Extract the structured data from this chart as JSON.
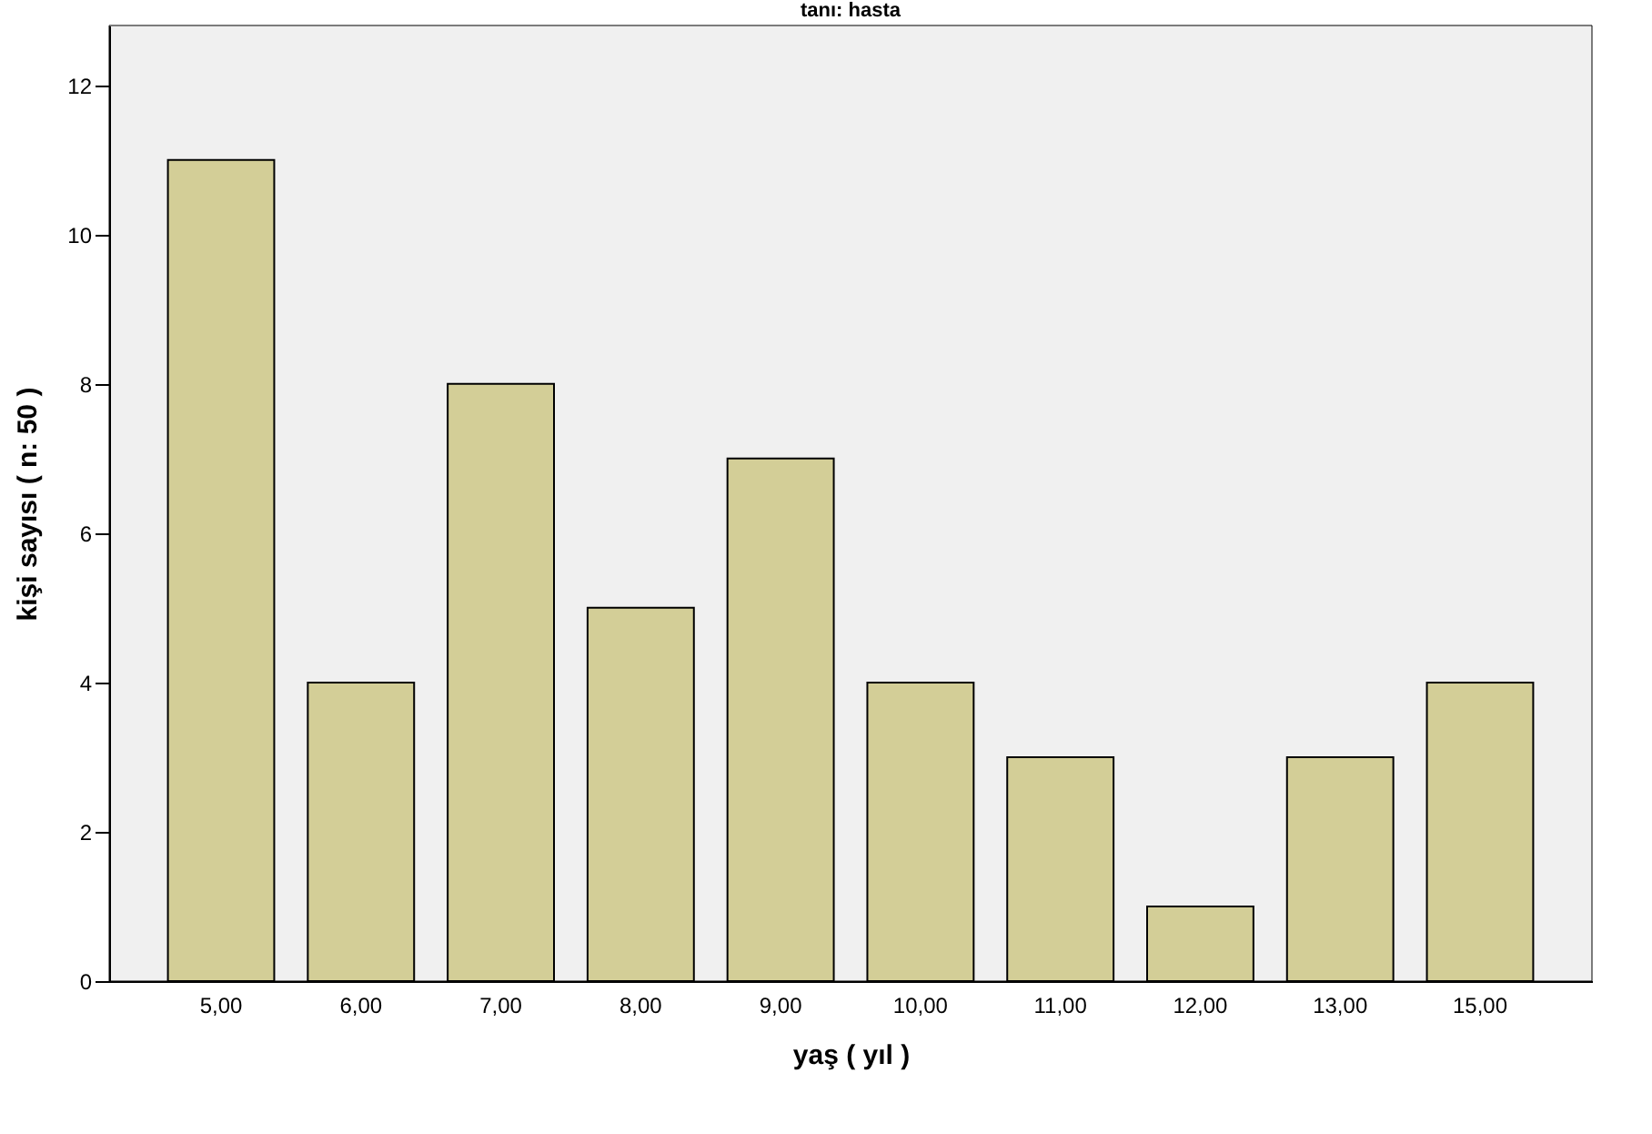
{
  "chart_data": {
    "type": "bar",
    "title": "tanı: hasta",
    "xlabel": "yaş ( yıl )",
    "ylabel": "kişi sayısı ( n: 50 )",
    "categories": [
      "5,00",
      "6,00",
      "7,00",
      "8,00",
      "9,00",
      "10,00",
      "11,00",
      "12,00",
      "13,00",
      "15,00"
    ],
    "values": [
      11,
      4,
      8,
      5,
      7,
      4,
      3,
      1,
      3,
      4
    ],
    "color": "#d3ce97",
    "ylim": [
      0,
      12.8
    ],
    "yticks": [
      0,
      2,
      4,
      6,
      8,
      10,
      12
    ],
    "grid": false
  }
}
